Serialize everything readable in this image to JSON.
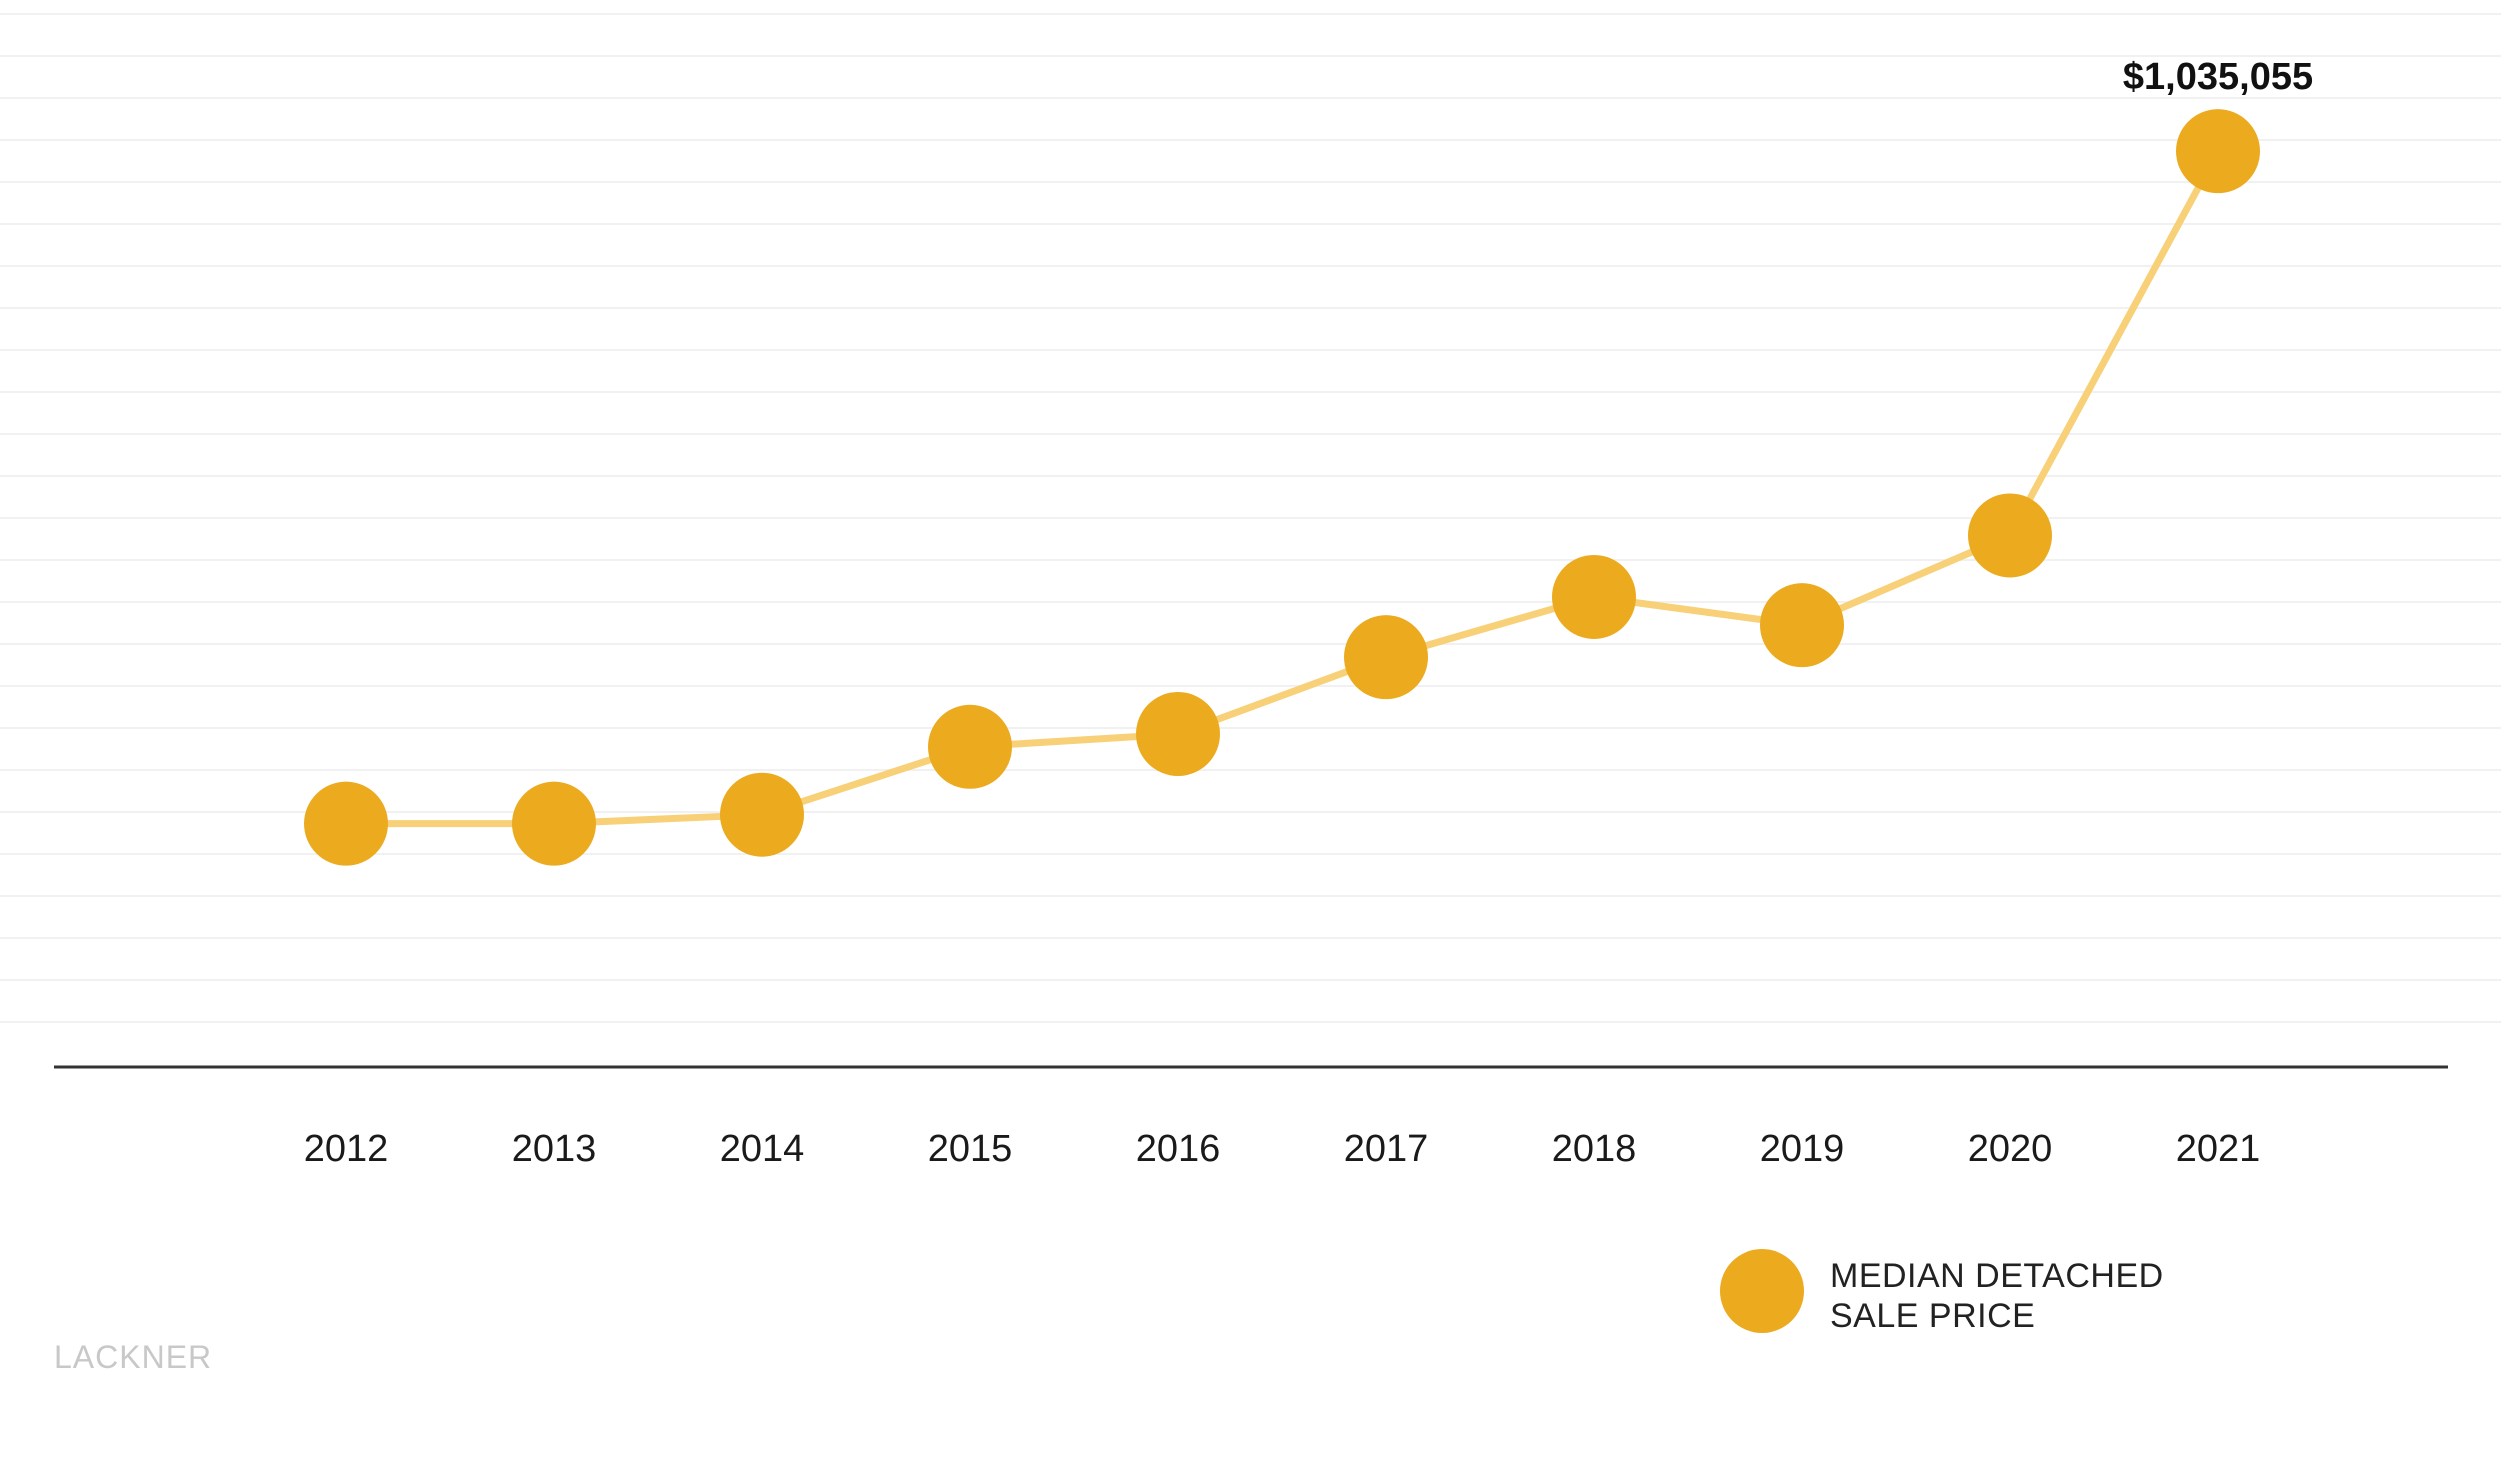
{
  "chart_data": {
    "type": "line",
    "x": [
      "2012",
      "2013",
      "2014",
      "2015",
      "2016",
      "2017",
      "2018",
      "2019",
      "2020",
      "2021"
    ],
    "series": [
      {
        "name": "MEDIAN DETACHED SALE PRICE",
        "values": [
          510000,
          510000,
          517000,
          570000,
          580000,
          640000,
          687000,
          665000,
          735000,
          1035055
        ]
      }
    ],
    "ylim": [
      320000,
      1100000
    ],
    "data_labels": [
      {
        "x": "2021",
        "text": "$1,035,055"
      }
    ],
    "legend": {
      "position": "bottom-right",
      "lines": [
        "MEDIAN DETACHED",
        "SALE PRICE"
      ]
    },
    "grid": true,
    "colors": {
      "marker": "#ECAA1F",
      "line": "#F7D078",
      "gridline": "#F1F1F1",
      "axis": "#333333"
    }
  },
  "watermark": "LACKNER"
}
